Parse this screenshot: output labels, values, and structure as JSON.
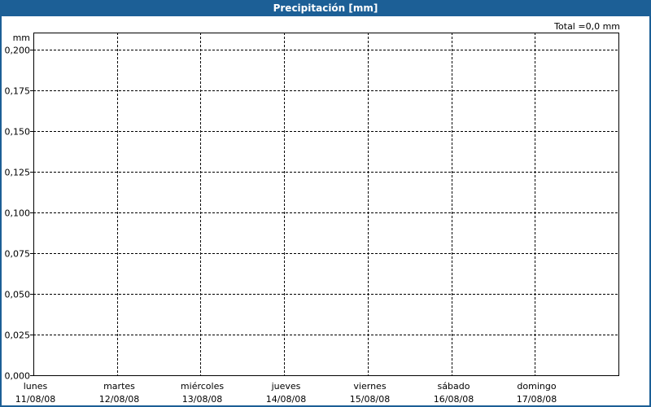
{
  "window": {
    "title": "Precipitación [mm]"
  },
  "colors": {
    "titlebar": "#1c5f96",
    "grid": "#000000",
    "background": "#ffffff"
  },
  "chart_data": {
    "type": "bar",
    "title": "Precipitación [mm]",
    "ylabel": "mm",
    "total_label": "Total =0,0 mm",
    "ylim": [
      0,
      0.2
    ],
    "yticks": [
      "0,000",
      "0,025",
      "0,050",
      "0,075",
      "0,100",
      "0,125",
      "0,150",
      "0,175",
      "0,200"
    ],
    "categories": [
      {
        "day": "lunes",
        "date": "11/08/08"
      },
      {
        "day": "martes",
        "date": "12/08/08"
      },
      {
        "day": "miércoles",
        "date": "13/08/08"
      },
      {
        "day": "jueves",
        "date": "14/08/08"
      },
      {
        "day": "viernes",
        "date": "15/08/08"
      },
      {
        "day": "sábado",
        "date": "16/08/08"
      },
      {
        "day": "domingo",
        "date": "17/08/08"
      }
    ],
    "values": [
      0,
      0,
      0,
      0,
      0,
      0,
      0
    ],
    "grid": true
  }
}
